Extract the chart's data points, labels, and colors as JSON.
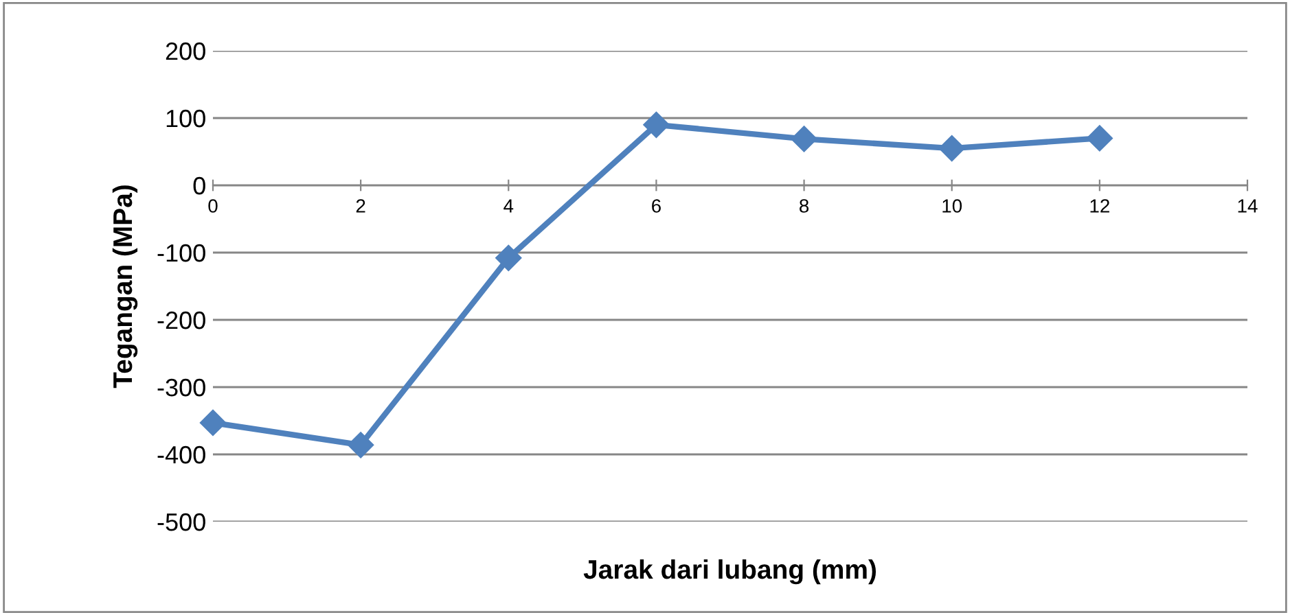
{
  "chart_data": {
    "type": "line",
    "xlabel": "Jarak dari lubang (mm)",
    "ylabel": "Tegangan (MPa)",
    "x": [
      0,
      2,
      4,
      6,
      8,
      10,
      12
    ],
    "series": [
      {
        "color": "#4f81bd",
        "values": [
          -353,
          -386,
          -108,
          90,
          69,
          55,
          70
        ]
      }
    ],
    "xlim": [
      0,
      14
    ],
    "xticks": [
      0,
      2,
      4,
      6,
      8,
      10,
      12,
      14
    ],
    "ylim": [
      -500,
      200
    ],
    "yticks": [
      -500,
      -400,
      -300,
      -200,
      -100,
      0,
      100,
      200
    ],
    "grid": "y",
    "marker": "diamond",
    "line_style": "solid",
    "legend": false
  }
}
